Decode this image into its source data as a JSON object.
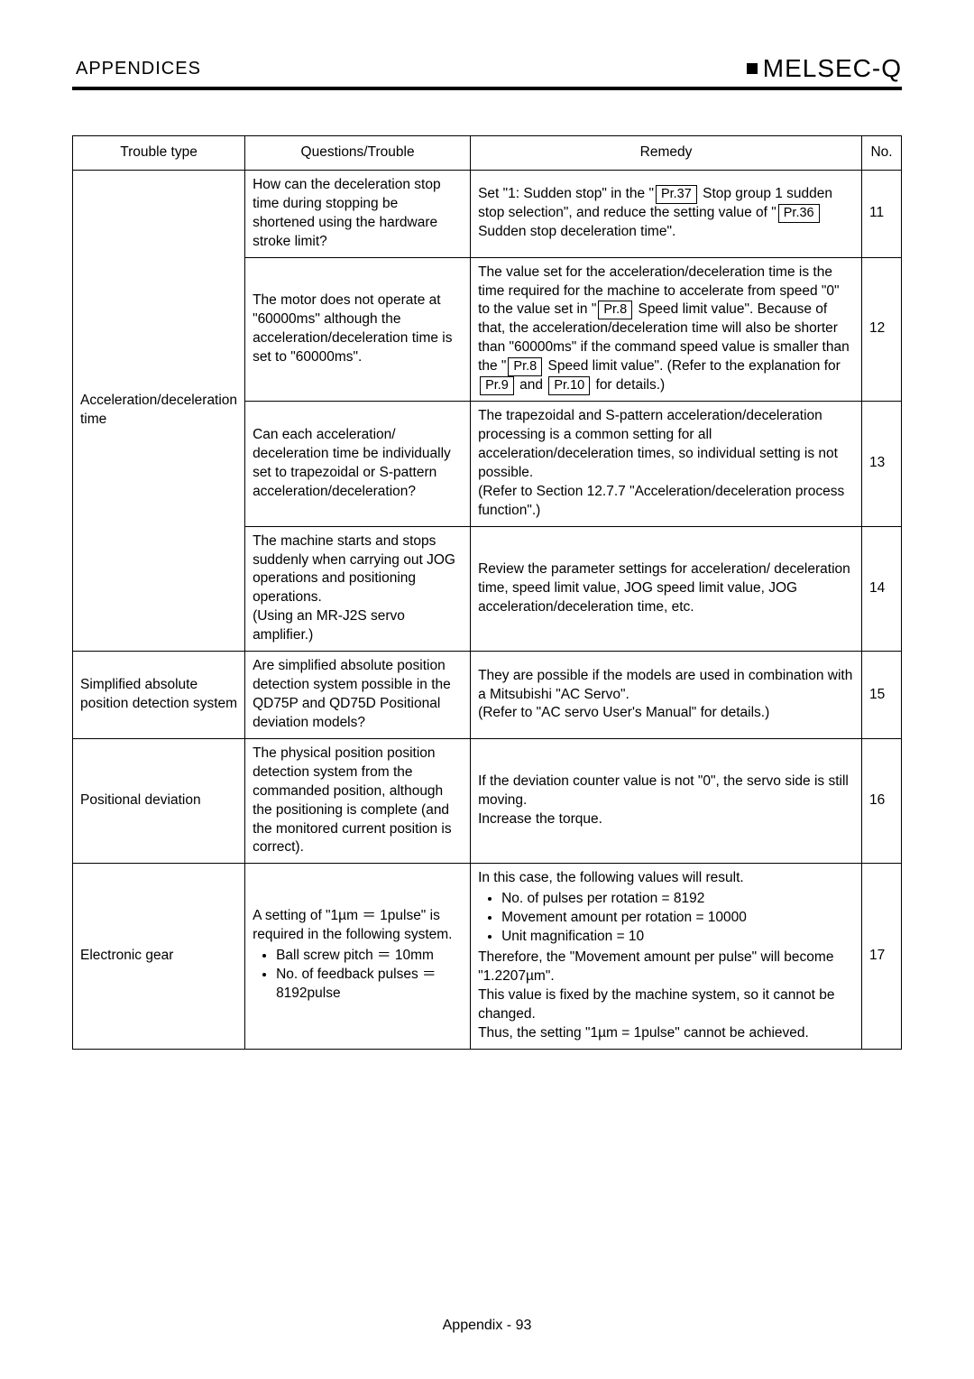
{
  "header": {
    "left": "APPENDICES",
    "right": "MELSEC-Q"
  },
  "table": {
    "headers": {
      "trouble": "Trouble type",
      "question": "Questions/Trouble",
      "remedy": "Remedy",
      "no": "No."
    },
    "troubleTypes": {
      "accel": "Acceleration/deceleration time",
      "abs": "Simplified absolute position detection system",
      "posdev": "Positional deviation",
      "gear": "Electronic gear"
    },
    "rows": {
      "r11": {
        "question": "How can the deceleration stop time during stopping be shortened using the hardware stroke limit?",
        "remedy_pre1": "Set \"1: Sudden stop\" in the \"",
        "pr37": "Pr.37",
        "remedy_mid1": " Stop group 1 sudden stop selection\", and reduce the setting value of \"",
        "pr36": "Pr.36",
        "remedy_post1": " Sudden stop deceleration time\".",
        "no": "11"
      },
      "r12": {
        "question": "The motor does not operate at \"60000ms\" although the acceleration/deceleration time is set to \"60000ms\".",
        "remedy_a": "The value set for the acceleration/deceleration time is the time required for the machine to accelerate from speed \"0\" to the value set in \"",
        "pr8a": "Pr.8",
        "remedy_b": " Speed limit value\". Because of that, the acceleration/deceleration time will also be shorter than \"60000ms\" if the command speed value is smaller than the \"",
        "pr8b": "Pr.8",
        "remedy_c": " Speed limit value\". (Refer to the explanation for ",
        "pr9": "Pr.9",
        "remedy_d": " and ",
        "pr10": "Pr.10",
        "remedy_e": " for details.)",
        "no": "12"
      },
      "r13": {
        "question": "Can each acceleration/ deceleration time be individually set to trapezoidal or S-pattern acceleration/deceleration?",
        "remedy": "The trapezoidal and S-pattern acceleration/deceleration processing is a common setting for all acceleration/deceleration times, so individual setting is not possible.\n(Refer to Section 12.7.7 \"Acceleration/deceleration process function\".)",
        "no": "13"
      },
      "r14": {
        "question": "The machine starts and stops suddenly when carrying out JOG operations and positioning operations.\n(Using an MR-J2S servo amplifier.)",
        "remedy": "Review the parameter settings for acceleration/ deceleration time, speed limit value, JOG speed limit value, JOG acceleration/deceleration time, etc.",
        "no": "14"
      },
      "r15": {
        "question": "Are simplified absolute position detection system possible in the QD75P and QD75D Positional deviation models?",
        "remedy": "They are possible if the models are used in combination with a Mitsubishi \"AC Servo\".\n(Refer to \"AC servo User's Manual\" for details.)",
        "no": "15"
      },
      "r16": {
        "question": "The physical position position detection system from the commanded position, although the positioning is complete (and the monitored current position is correct).",
        "remedy": "If the deviation counter value is not \"0\", the servo side is still moving.\nIncrease the torque.",
        "no": "16"
      },
      "r17": {
        "question_pre": "A setting of \"1µm ＝ 1pulse\" is required in the following system.",
        "q_b1": "Ball screw pitch ＝ 10mm",
        "q_b2": "No. of feedback pulses ＝ 8192pulse",
        "remedy_pre": "In this case, the following values will result.",
        "r_b1": "No. of pulses per rotation = 8192",
        "r_b2": "Movement amount per rotation = 10000",
        "r_b3": "Unit magnification = 10",
        "remedy_post": "Therefore, the \"Movement amount per pulse\" will become \"1.2207µm\".\nThis value is fixed by the machine system, so it cannot be changed.\nThus, the setting \"1µm = 1pulse\" cannot be achieved.",
        "no": "17"
      }
    }
  },
  "footer": "Appendix - 93"
}
